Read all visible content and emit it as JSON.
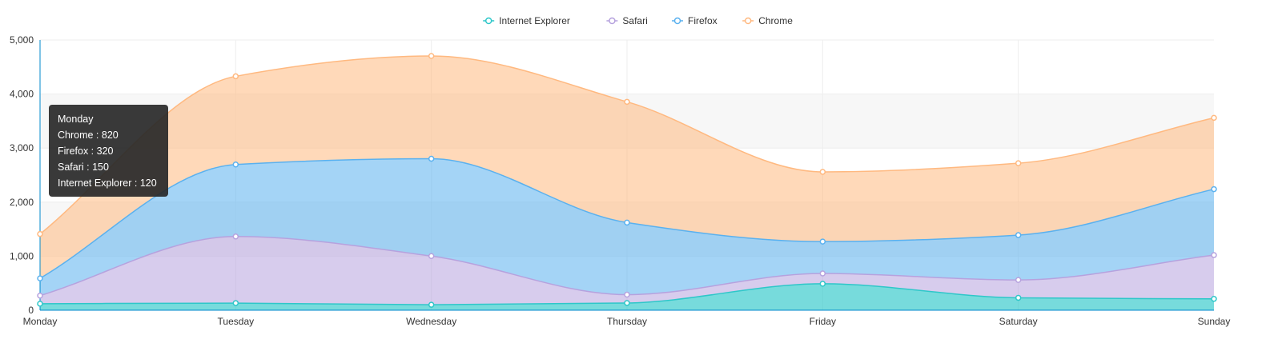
{
  "chart_data": {
    "type": "area",
    "stacked": true,
    "smooth": true,
    "categories": [
      "Monday",
      "Tuesday",
      "Wednesday",
      "Thursday",
      "Friday",
      "Saturday",
      "Sunday"
    ],
    "series": [
      {
        "name": "Internet Explorer",
        "color": "#2ec7c9",
        "values": [
          120,
          132,
          101,
          134,
          490,
          230,
          210
        ]
      },
      {
        "name": "Safari",
        "color": "#b6a2de",
        "values": [
          150,
          1232,
          901,
          154,
          190,
          330,
          810
        ]
      },
      {
        "name": "Firefox",
        "color": "#5ab1ef",
        "values": [
          320,
          1332,
          1801,
          1334,
          590,
          830,
          1220
        ]
      },
      {
        "name": "Chrome",
        "color": "#ffb980",
        "values": [
          820,
          1632,
          1901,
          2234,
          1290,
          1330,
          1320
        ]
      }
    ],
    "ylim": [
      0,
      5000
    ],
    "yticks": [
      "0",
      "1,000",
      "2,000",
      "3,000",
      "4,000",
      "5,000"
    ],
    "legend_position": "top-center",
    "grid": true
  },
  "tooltip": {
    "title": "Monday",
    "lines": [
      "Chrome : 820",
      "Firefox : 320",
      "Safari : 150",
      "Internet Explorer : 120"
    ]
  }
}
